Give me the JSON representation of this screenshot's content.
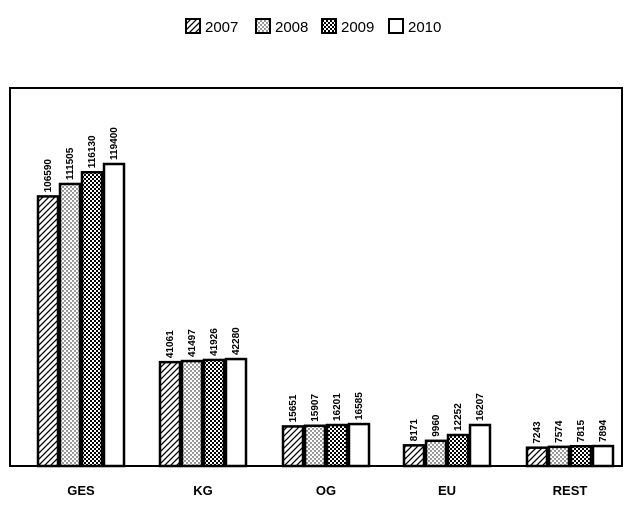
{
  "chart_data": {
    "type": "bar",
    "categories": [
      "GES",
      "KG",
      "OG",
      "EU",
      "REST"
    ],
    "series": [
      {
        "name": "2007",
        "pattern": "diagonal-hatch",
        "values": [
          106590,
          41061,
          15651,
          8171,
          7243
        ]
      },
      {
        "name": "2008",
        "pattern": "dots",
        "values": [
          111505,
          41497,
          15907,
          9960,
          7574
        ]
      },
      {
        "name": "2009",
        "pattern": "checker",
        "values": [
          116130,
          41926,
          16201,
          12252,
          7815
        ]
      },
      {
        "name": "2010",
        "pattern": "white",
        "values": [
          119400,
          42280,
          16585,
          16207,
          7894
        ]
      }
    ],
    "title": "",
    "xlabel": "",
    "ylabel": "",
    "ylim": [
      0,
      132000
    ],
    "grid": false,
    "legend_position": "top-center",
    "colors": {
      "stroke": "#000000",
      "fill_white": "#ffffff"
    }
  }
}
